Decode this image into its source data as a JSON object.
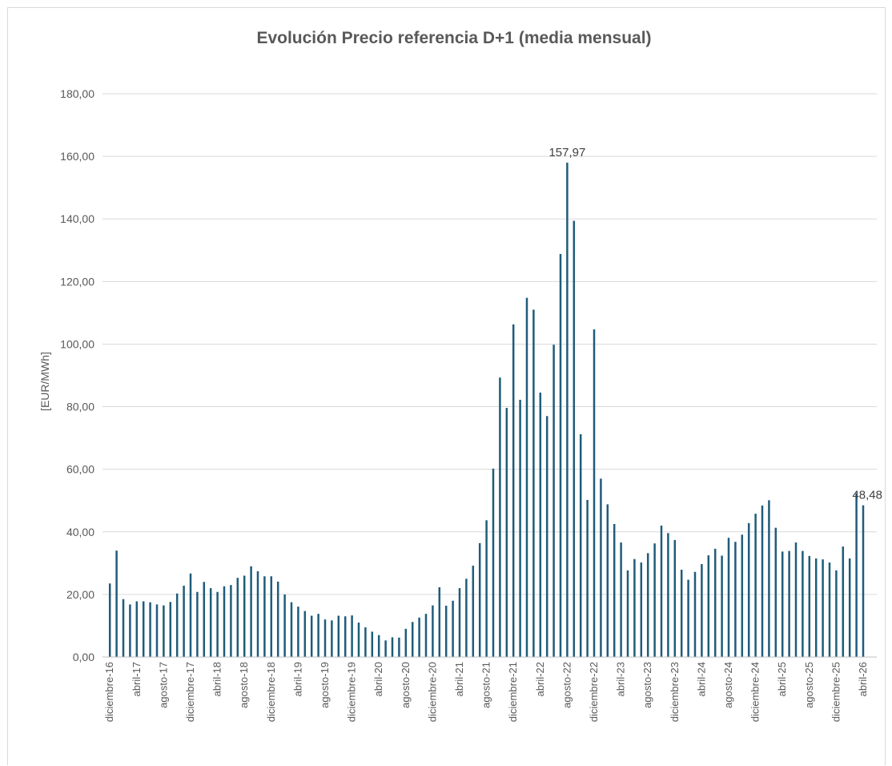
{
  "chart_data": {
    "type": "bar",
    "title": "Evolución Precio referencia D+1 (media mensual)",
    "ylabel": "[EUR/MWh]",
    "xlabel": "",
    "ylim": [
      0,
      180
    ],
    "ytick_step": 20,
    "ytick_labels": [
      "0,00",
      "20,00",
      "40,00",
      "60,00",
      "80,00",
      "100,00",
      "120,00",
      "140,00",
      "160,00",
      "180,00"
    ],
    "grid": true,
    "legend": "none",
    "bar_color": "#1f5c7a",
    "categories": [
      "diciembre-16",
      "enero-17",
      "febrero-17",
      "marzo-17",
      "abril-17",
      "mayo-17",
      "junio-17",
      "julio-17",
      "agosto-17",
      "septiembre-17",
      "octubre-17",
      "noviembre-17",
      "diciembre-17",
      "enero-18",
      "febrero-18",
      "marzo-18",
      "abril-18",
      "mayo-18",
      "junio-18",
      "julio-18",
      "agosto-18",
      "septiembre-18",
      "octubre-18",
      "noviembre-18",
      "diciembre-18",
      "enero-19",
      "febrero-19",
      "marzo-19",
      "abril-19",
      "mayo-19",
      "junio-19",
      "julio-19",
      "agosto-19",
      "septiembre-19",
      "octubre-19",
      "noviembre-19",
      "diciembre-19",
      "enero-20",
      "febrero-20",
      "marzo-20",
      "abril-20",
      "mayo-20",
      "junio-20",
      "julio-20",
      "agosto-20",
      "septiembre-20",
      "octubre-20",
      "noviembre-20",
      "diciembre-20",
      "enero-21",
      "febrero-21",
      "marzo-21",
      "abril-21",
      "mayo-21",
      "junio-21",
      "julio-21",
      "agosto-21",
      "septiembre-21",
      "octubre-21",
      "noviembre-21",
      "diciembre-21",
      "enero-22",
      "febrero-22",
      "marzo-22",
      "abril-22",
      "mayo-22",
      "junio-22",
      "julio-22",
      "agosto-22",
      "septiembre-22",
      "octubre-22",
      "noviembre-22",
      "diciembre-22",
      "enero-23",
      "febrero-23",
      "marzo-23",
      "abril-23",
      "mayo-23",
      "junio-23",
      "julio-23",
      "agosto-23",
      "septiembre-23",
      "octubre-23",
      "noviembre-23",
      "diciembre-23",
      "enero-24",
      "febrero-24",
      "marzo-24",
      "abril-24",
      "mayo-24",
      "junio-24",
      "julio-24",
      "agosto-24",
      "septiembre-24",
      "octubre-24",
      "noviembre-24",
      "diciembre-24",
      "enero-25",
      "febrero-25",
      "marzo-25",
      "abril-25",
      "mayo-25",
      "junio-25",
      "julio-25",
      "agosto-25",
      "septiembre-25",
      "octubre-25",
      "noviembre-25",
      "diciembre-25",
      "enero-26",
      "febrero-26",
      "marzo-26",
      "abril-26"
    ],
    "values": [
      23.5,
      34.0,
      18.5,
      16.8,
      17.8,
      17.8,
      17.5,
      16.8,
      16.5,
      17.6,
      20.3,
      22.8,
      26.7,
      20.8,
      24.0,
      22.0,
      20.8,
      22.6,
      23.0,
      25.3,
      26.0,
      29.0,
      27.4,
      25.8,
      25.8,
      24.1,
      20.0,
      17.5,
      16.1,
      14.7,
      13.2,
      13.8,
      12.0,
      11.7,
      13.2,
      13.0,
      13.3,
      11.0,
      9.5,
      8.1,
      7.0,
      5.3,
      6.3,
      6.2,
      9.0,
      11.2,
      12.6,
      13.8,
      16.5,
      22.3,
      16.4,
      18.0,
      22.0,
      25.0,
      29.2,
      36.4,
      43.7,
      60.2,
      89.3,
      79.6,
      106.3,
      82.2,
      114.8,
      111.0,
      84.5,
      77.0,
      99.8,
      128.8,
      157.97,
      139.4,
      71.2,
      50.2,
      104.7,
      57.0,
      48.8,
      42.5,
      36.6,
      27.7,
      31.3,
      30.2,
      33.2,
      36.3,
      42.0,
      39.6,
      37.4,
      27.9,
      24.7,
      27.2,
      29.7,
      32.5,
      34.6,
      32.4,
      38.1,
      36.8,
      39.1,
      42.8,
      45.8,
      48.4,
      50.1,
      41.3,
      33.7,
      33.9,
      36.6,
      33.9,
      32.3,
      31.5,
      31.2,
      30.2,
      27.7,
      35.3,
      31.5,
      52.3,
      48.48
    ],
    "xtick_labels": [
      {
        "index": 0,
        "label": "diciembre-16"
      },
      {
        "index": 4,
        "label": "abril-17"
      },
      {
        "index": 8,
        "label": "agosto-17"
      },
      {
        "index": 12,
        "label": "diciembre-17"
      },
      {
        "index": 16,
        "label": "abril-18"
      },
      {
        "index": 20,
        "label": "agosto-18"
      },
      {
        "index": 24,
        "label": "diciembre-18"
      },
      {
        "index": 28,
        "label": "abril-19"
      },
      {
        "index": 32,
        "label": "agosto-19"
      },
      {
        "index": 36,
        "label": "diciembre-19"
      },
      {
        "index": 40,
        "label": "abril-20"
      },
      {
        "index": 44,
        "label": "agosto-20"
      },
      {
        "index": 48,
        "label": "diciembre-20"
      },
      {
        "index": 52,
        "label": "abril-21"
      },
      {
        "index": 56,
        "label": "agosto-21"
      },
      {
        "index": 60,
        "label": "diciembre-21"
      },
      {
        "index": 64,
        "label": "abril-22"
      },
      {
        "index": 68,
        "label": "agosto-22"
      },
      {
        "index": 72,
        "label": "diciembre-22"
      },
      {
        "index": 76,
        "label": "abril-23"
      },
      {
        "index": 80,
        "label": "agosto-23"
      },
      {
        "index": 84,
        "label": "diciembre-23"
      },
      {
        "index": 88,
        "label": "abril-24"
      },
      {
        "index": 92,
        "label": "agosto-24"
      },
      {
        "index": 96,
        "label": "diciembre-24"
      },
      {
        "index": 100,
        "label": "abril-25"
      },
      {
        "index": 104,
        "label": "agosto-25"
      },
      {
        "index": 108,
        "label": "diciembre-25"
      },
      {
        "index": 112,
        "label": "abril-26"
      }
    ],
    "data_labels": [
      {
        "index": 68,
        "label": "157,97"
      },
      {
        "index": 112,
        "label": "48,48"
      }
    ]
  }
}
